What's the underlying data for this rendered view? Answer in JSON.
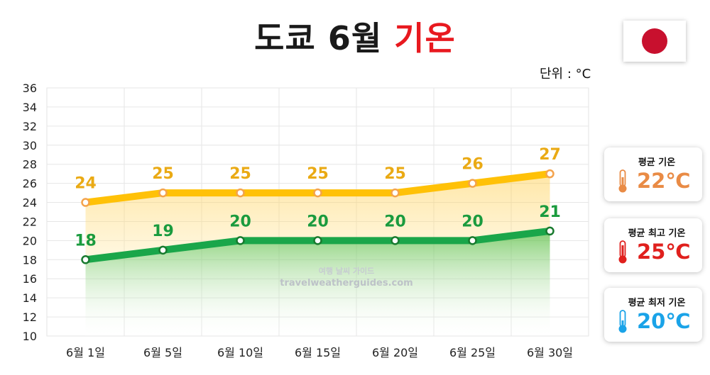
{
  "title": {
    "main": "도쿄 6월 ",
    "accent": "기온"
  },
  "unit": "단위 : °C",
  "watermark": {
    "line1": "여행 날씨 가이드",
    "line2": "travelweatherguides.com"
  },
  "summary": [
    {
      "label": "평균 기온",
      "value": "22℃",
      "color": "#e98b45",
      "icon": "thermometer-icon"
    },
    {
      "label": "평균 최고 기온",
      "value": "25℃",
      "color": "#e0201d",
      "icon": "thermometer-icon"
    },
    {
      "label": "평균 최저 기온",
      "value": "20℃",
      "color": "#1aa3e8",
      "icon": "thermometer-icon"
    }
  ],
  "chart_data": {
    "type": "line",
    "categories": [
      "6월 1일",
      "6월 5일",
      "6월 10일",
      "6월 15일",
      "6월 20일",
      "6월 25일",
      "6월 30일"
    ],
    "series": [
      {
        "values": [
          24,
          25,
          25,
          25,
          25,
          26,
          27
        ],
        "color": "#ffc107",
        "marker_color": "#f4a34c",
        "label_color": "#eaaa14"
      },
      {
        "values": [
          18,
          19,
          20,
          20,
          20,
          20,
          21
        ],
        "color": "#1aa64a",
        "marker_color": "#187a2e",
        "label_color": "#1a9b3e"
      }
    ],
    "ylim": [
      10,
      36
    ],
    "yticks": [
      10,
      12,
      14,
      16,
      18,
      20,
      22,
      24,
      26,
      28,
      30,
      32,
      34,
      36
    ],
    "grid": true
  }
}
